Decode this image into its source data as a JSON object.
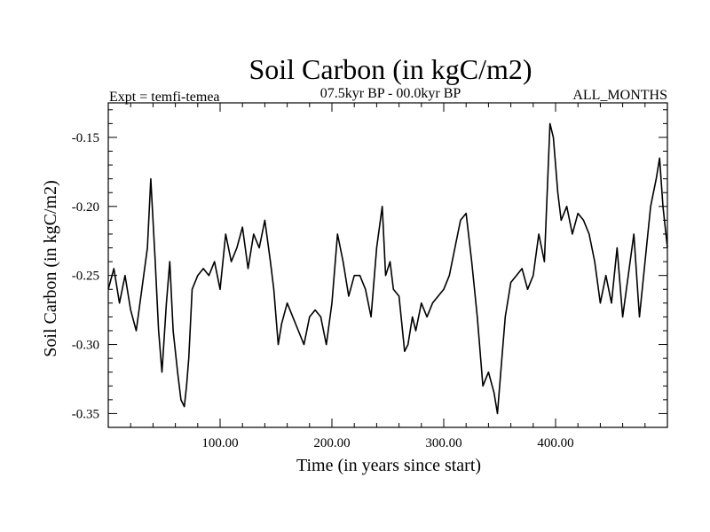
{
  "chart_data": {
    "type": "line",
    "title": "Soil Carbon (in kgC/m2)",
    "subtitle": "07.5kyr BP - 00.0kyr BP",
    "left_label": "Expt = temfi-temea",
    "right_label": "ALL_MONTHS",
    "xlabel": "Time (in years since start)",
    "ylabel": "Soil Carbon (in kgC/m2)",
    "xlim": [
      0,
      500
    ],
    "ylim": [
      -0.36,
      -0.125
    ],
    "x_ticks": [
      100,
      200,
      300,
      400
    ],
    "x_tick_labels": [
      "100.00",
      "200.00",
      "300.00",
      "400.00"
    ],
    "y_ticks": [
      -0.35,
      -0.3,
      -0.25,
      -0.2,
      -0.15
    ],
    "y_tick_labels": [
      "-0.35",
      "-0.30",
      "-0.25",
      "-0.20",
      "-0.15"
    ],
    "grid": false,
    "series": [
      {
        "name": "Soil Carbon",
        "color": "#000000",
        "x": [
          0,
          5,
          10,
          15,
          20,
          25,
          30,
          35,
          38,
          42,
          45,
          48,
          52,
          55,
          58,
          62,
          65,
          68,
          70,
          72,
          75,
          80,
          85,
          90,
          95,
          100,
          105,
          110,
          115,
          120,
          125,
          130,
          135,
          140,
          145,
          148,
          152,
          155,
          160,
          165,
          170,
          175,
          180,
          185,
          190,
          195,
          200,
          205,
          210,
          215,
          220,
          225,
          230,
          235,
          240,
          245,
          248,
          252,
          255,
          260,
          265,
          268,
          272,
          275,
          280,
          285,
          290,
          295,
          300,
          305,
          310,
          315,
          320,
          325,
          330,
          335,
          340,
          345,
          348,
          352,
          355,
          360,
          365,
          370,
          375,
          380,
          385,
          390,
          395,
          398,
          402,
          405,
          410,
          415,
          420,
          425,
          430,
          435,
          440,
          445,
          450,
          455,
          460,
          465,
          470,
          475,
          480,
          485,
          490,
          493,
          496,
          500
        ],
        "values": [
          -0.26,
          -0.245,
          -0.27,
          -0.25,
          -0.275,
          -0.29,
          -0.26,
          -0.23,
          -0.18,
          -0.24,
          -0.29,
          -0.32,
          -0.27,
          -0.24,
          -0.29,
          -0.32,
          -0.34,
          -0.345,
          -0.33,
          -0.31,
          -0.26,
          -0.25,
          -0.245,
          -0.25,
          -0.24,
          -0.26,
          -0.22,
          -0.24,
          -0.23,
          -0.215,
          -0.245,
          -0.22,
          -0.23,
          -0.21,
          -0.24,
          -0.26,
          -0.3,
          -0.285,
          -0.27,
          -0.28,
          -0.29,
          -0.3,
          -0.28,
          -0.275,
          -0.28,
          -0.3,
          -0.27,
          -0.22,
          -0.24,
          -0.265,
          -0.25,
          -0.25,
          -0.26,
          -0.28,
          -0.23,
          -0.2,
          -0.25,
          -0.24,
          -0.26,
          -0.265,
          -0.305,
          -0.3,
          -0.28,
          -0.29,
          -0.27,
          -0.28,
          -0.27,
          -0.265,
          -0.26,
          -0.25,
          -0.23,
          -0.21,
          -0.205,
          -0.24,
          -0.28,
          -0.33,
          -0.32,
          -0.335,
          -0.35,
          -0.31,
          -0.28,
          -0.255,
          -0.25,
          -0.245,
          -0.26,
          -0.25,
          -0.22,
          -0.24,
          -0.14,
          -0.15,
          -0.19,
          -0.21,
          -0.2,
          -0.22,
          -0.205,
          -0.21,
          -0.22,
          -0.24,
          -0.27,
          -0.25,
          -0.27,
          -0.23,
          -0.28,
          -0.25,
          -0.22,
          -0.28,
          -0.24,
          -0.2,
          -0.18,
          -0.165,
          -0.2,
          -0.23
        ]
      }
    ]
  }
}
